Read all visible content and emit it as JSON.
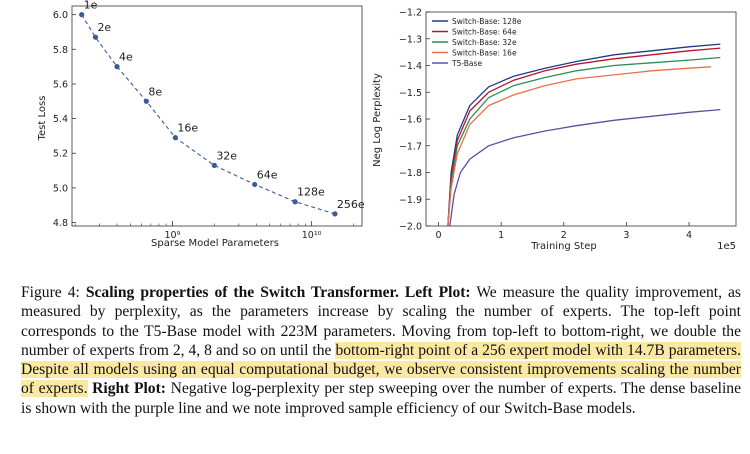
{
  "chart_data": [
    {
      "type": "line",
      "xlabel": "Sparse Model Parameters",
      "ylabel": "Test Loss",
      "xscale": "log",
      "x_tick_labels": [
        "10⁹",
        "10¹⁰"
      ],
      "y_ticks": [
        4.8,
        5.0,
        5.2,
        5.4,
        5.6,
        5.8,
        6.0
      ],
      "ylim": [
        4.78,
        6.05
      ],
      "series": [
        {
          "points": [
            {
              "label": "1e",
              "x": 223000000.0,
              "y": 6.0
            },
            {
              "label": "2e",
              "x": 280000000.0,
              "y": 5.87
            },
            {
              "label": "4e",
              "x": 400000000.0,
              "y": 5.7
            },
            {
              "label": "8e",
              "x": 650000000.0,
              "y": 5.5
            },
            {
              "label": "16e",
              "x": 1050000000.0,
              "y": 5.29
            },
            {
              "label": "32e",
              "x": 2000000000.0,
              "y": 5.13
            },
            {
              "label": "64e",
              "x": 3900000000.0,
              "y": 5.02
            },
            {
              "label": "128e",
              "x": 7600000000.0,
              "y": 4.92
            },
            {
              "label": "256e",
              "x": 14700000000.0,
              "y": 4.85
            }
          ],
          "color": "#3a5a98"
        }
      ]
    },
    {
      "type": "line",
      "xlabel": "Training Step",
      "ylabel": "Neg Log Perplexity",
      "x_offset_label": "1e5",
      "x_ticks": [
        0,
        1,
        2,
        3,
        4
      ],
      "xlim": [
        -0.2,
        4.75
      ],
      "y_ticks": [
        -2.0,
        -1.9,
        -1.8,
        -1.7,
        -1.6,
        -1.5,
        -1.4,
        -1.3,
        -1.2
      ],
      "ylim": [
        -2.0,
        -1.2
      ],
      "legend_position": "top-left",
      "series": [
        {
          "name": "Switch-Base: 128e",
          "color": "#1f3a8a",
          "x": [
            0.15,
            0.2,
            0.3,
            0.5,
            0.8,
            1.2,
            1.7,
            2.2,
            2.8,
            3.4,
            4.0,
            4.5
          ],
          "y": [
            -2.0,
            -1.8,
            -1.66,
            -1.55,
            -1.48,
            -1.44,
            -1.41,
            -1.385,
            -1.36,
            -1.345,
            -1.33,
            -1.32
          ]
        },
        {
          "name": "Switch-Base: 64e",
          "color": "#b2182b",
          "x": [
            0.15,
            0.2,
            0.3,
            0.5,
            0.8,
            1.2,
            1.7,
            2.2,
            2.8,
            3.4,
            4.0,
            4.5
          ],
          "y": [
            -2.0,
            -1.82,
            -1.68,
            -1.57,
            -1.5,
            -1.455,
            -1.42,
            -1.395,
            -1.375,
            -1.36,
            -1.345,
            -1.335
          ]
        },
        {
          "name": "Switch-Base: 32e",
          "color": "#2e8b57",
          "x": [
            0.15,
            0.2,
            0.3,
            0.5,
            0.8,
            1.2,
            1.7,
            2.2,
            2.8,
            3.4,
            4.0,
            4.5
          ],
          "y": [
            -2.0,
            -1.84,
            -1.7,
            -1.6,
            -1.52,
            -1.475,
            -1.445,
            -1.42,
            -1.4,
            -1.39,
            -1.38,
            -1.37
          ]
        },
        {
          "name": "Switch-Base: 16e",
          "color": "#e8704a",
          "x": [
            0.15,
            0.2,
            0.3,
            0.5,
            0.8,
            1.2,
            1.7,
            2.2,
            2.8,
            3.4,
            4.0,
            4.35
          ],
          "y": [
            -2.0,
            -1.86,
            -1.73,
            -1.62,
            -1.55,
            -1.51,
            -1.475,
            -1.45,
            -1.435,
            -1.42,
            -1.41,
            -1.405
          ]
        },
        {
          "name": "T5-Base",
          "color": "#5b4fa0",
          "x": [
            0.18,
            0.25,
            0.35,
            0.5,
            0.8,
            1.2,
            1.7,
            2.2,
            2.8,
            3.4,
            4.0,
            4.5
          ],
          "y": [
            -2.0,
            -1.88,
            -1.8,
            -1.75,
            -1.7,
            -1.67,
            -1.645,
            -1.625,
            -1.605,
            -1.59,
            -1.575,
            -1.565
          ]
        }
      ]
    }
  ],
  "caption": {
    "fig_label": "Figure 4:",
    "title": "Scaling properties of the Switch Transformer.",
    "left_label": "Left Plot:",
    "text_1": "We measure the quality improvement, as measured by perplexity, as the parameters increase by scaling the number of experts. The top-left point corresponds to the T5-Base model with 223M parameters. Moving from top-left to bottom-right, we double the number of experts from 2, 4, 8 and so on until the",
    "highlight_1": "bottom-right point of a 256 expert model with 14.7B parameters. Despite all models using an equal computational budget, we observe consistent improvements scaling the number of experts.",
    "right_label": "Right Plot:",
    "text_2": "Negative log-perplexity per step sweeping over the number of experts. The dense baseline is shown with the purple line and we note improved sample efficiency of our Switch-Base models."
  }
}
